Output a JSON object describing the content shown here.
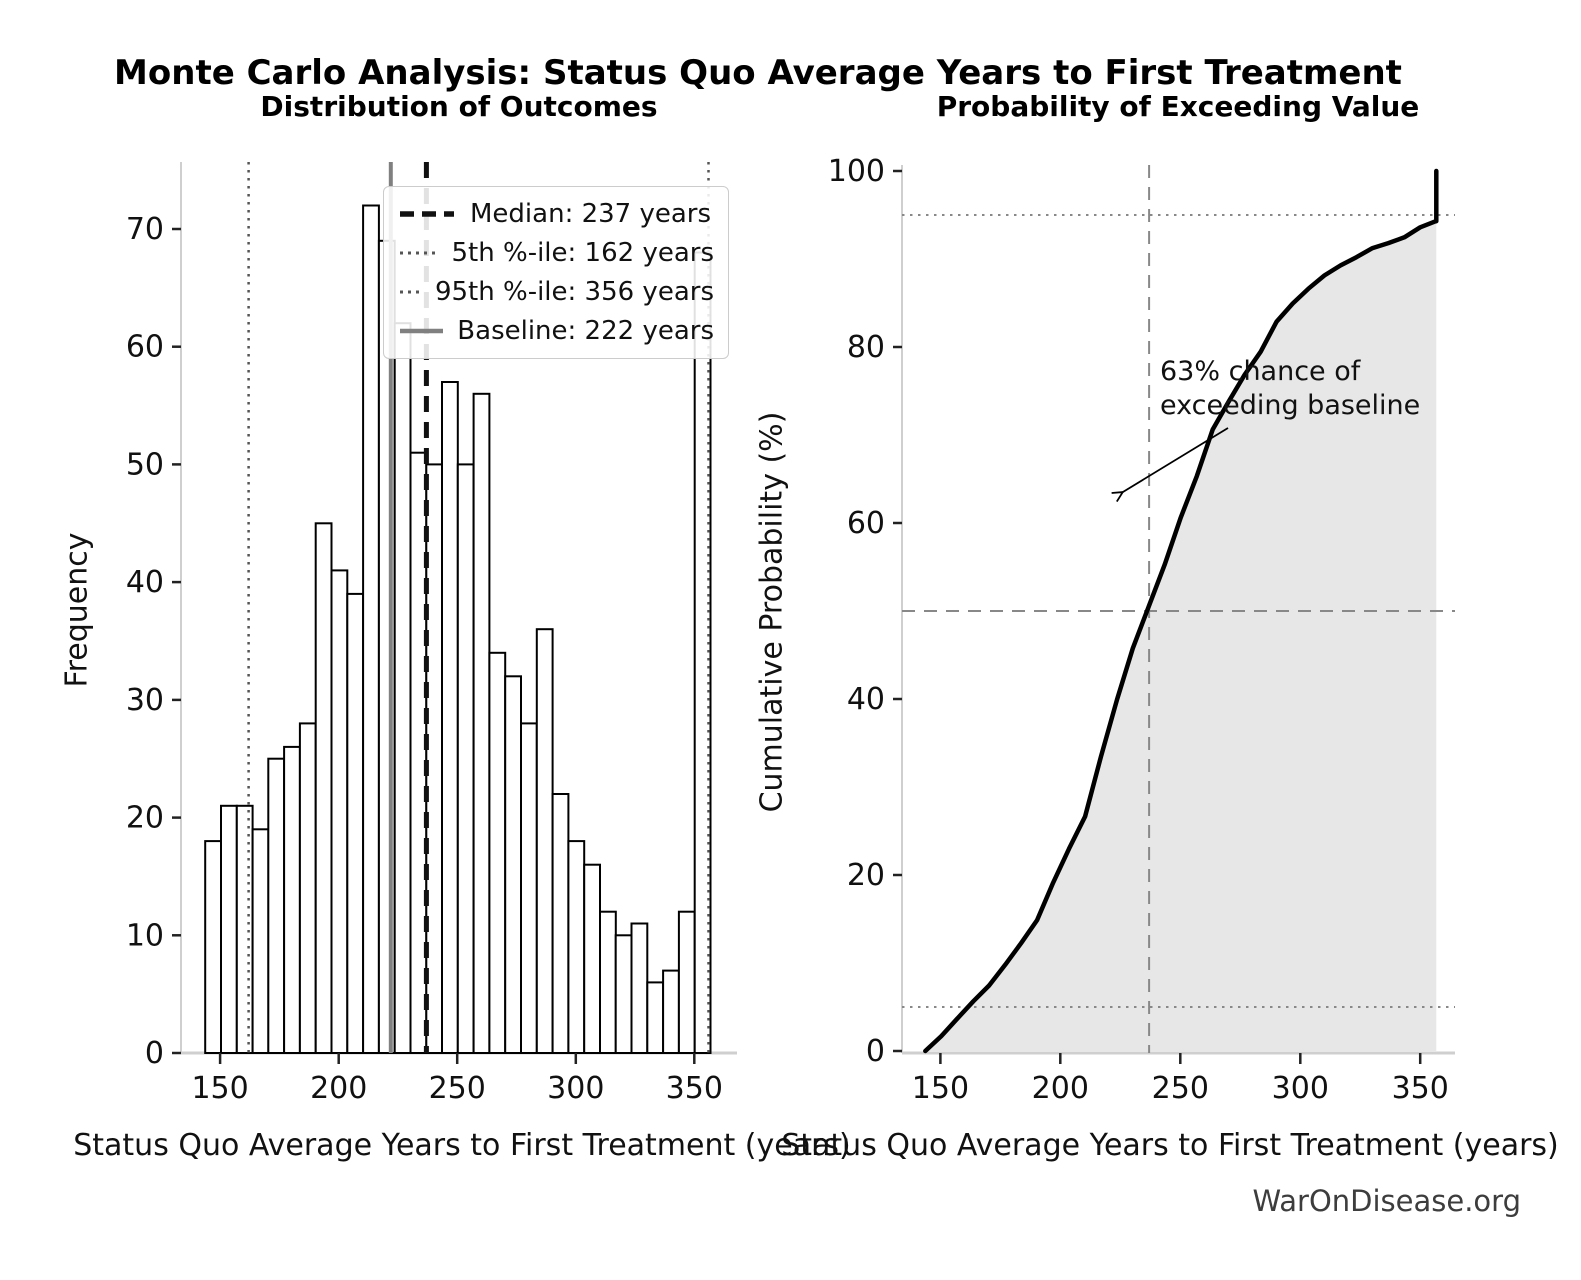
{
  "main_title": "Monte Carlo Analysis: Status Quo Average Years to First Treatment",
  "watermark": "WarOnDisease.org",
  "colors": {
    "bar_edge": "#000000",
    "bar_fill": "#ffffff",
    "median_line": "#111111",
    "percentile_line": "#555555",
    "baseline_line": "#808080",
    "cdf_line": "#000000",
    "cdf_fill": "#e7e7e7",
    "guide_line": "#888888",
    "spine": "#cfcfcf",
    "tick": "#222222",
    "watermark_text": "#3d3d3d"
  },
  "chart_data": [
    {
      "type": "bar",
      "subtype": "histogram",
      "title": "Distribution of Outcomes",
      "xlabel": "Status Quo Average Years to First Treatment (years)",
      "ylabel": "Frequency",
      "bin_start": 143.7,
      "bin_width": 6.66,
      "counts": [
        18,
        21,
        21,
        19,
        25,
        26,
        28,
        45,
        41,
        39,
        72,
        69,
        62,
        51,
        50,
        57,
        50,
        56,
        34,
        32,
        28,
        36,
        22,
        18,
        16,
        12,
        10,
        11,
        6,
        7,
        12,
        68
      ],
      "x_ticks": [
        150,
        200,
        250,
        300,
        350
      ],
      "y_ticks": [
        0,
        10,
        20,
        30,
        40,
        50,
        60,
        70
      ],
      "xlim": [
        133.5,
        368.0
      ],
      "ylim": [
        0,
        75.6
      ],
      "grid": false,
      "legend_position": "upper right",
      "vlines": [
        {
          "label": "Median: 237 years",
          "x": 237,
          "style": "dashed",
          "color": "#111111",
          "width": 5
        },
        {
          "label": "5th %-ile: 162 years",
          "x": 162,
          "style": "dotted",
          "color": "#555555",
          "width": 2.5
        },
        {
          "label": "95th %-ile: 356 years",
          "x": 356,
          "style": "dotted",
          "color": "#555555",
          "width": 2.5
        },
        {
          "label": "Baseline: 222 years",
          "x": 222,
          "style": "solid",
          "color": "#808080",
          "width": 4
        }
      ]
    },
    {
      "type": "line",
      "subtype": "cumulative-probability",
      "title": "Probability of Exceeding Value",
      "xlabel": "Status Quo Average Years to First Treatment (years)",
      "ylabel": "Cumulative Probability (%)",
      "x": [
        143.7,
        150.4,
        157.0,
        163.7,
        170.3,
        177.0,
        183.6,
        190.3,
        197.0,
        203.6,
        210.3,
        216.9,
        223.6,
        230.2,
        236.9,
        243.5,
        250.2,
        256.9,
        263.5,
        270.2,
        276.8,
        283.5,
        290.1,
        296.8,
        303.4,
        310.1,
        316.8,
        323.4,
        330.1,
        336.7,
        343.4,
        350.0,
        356.5,
        356.7,
        356.7
      ],
      "y": [
        0,
        1.69,
        3.67,
        5.65,
        7.44,
        9.79,
        12.24,
        14.88,
        19.11,
        22.98,
        26.65,
        33.43,
        39.92,
        45.76,
        50.56,
        55.27,
        60.64,
        65.35,
        70.62,
        73.82,
        76.84,
        79.47,
        82.86,
        84.93,
        86.63,
        88.14,
        89.27,
        90.21,
        91.24,
        91.81,
        92.47,
        93.6,
        94.3,
        94.3,
        100
      ],
      "x_ticks": [
        150,
        200,
        250,
        300,
        350
      ],
      "y_ticks": [
        0,
        20,
        40,
        60,
        80,
        100
      ],
      "xlim": [
        134.0,
        364.5
      ],
      "ylim": [
        0,
        100
      ],
      "grid": false,
      "fill_under": true,
      "hlines": [
        {
          "y": 5,
          "style": "dotted"
        },
        {
          "y": 50,
          "style": "dashed"
        },
        {
          "y": 95,
          "style": "dotted"
        }
      ],
      "vlines": [
        {
          "x": 237,
          "style": "dashed"
        }
      ],
      "annotation": {
        "text_lines": [
          "63% chance of",
          "exceeding baseline"
        ],
        "arrow_points_to": {
          "x": 224,
          "y": 63
        }
      }
    }
  ]
}
